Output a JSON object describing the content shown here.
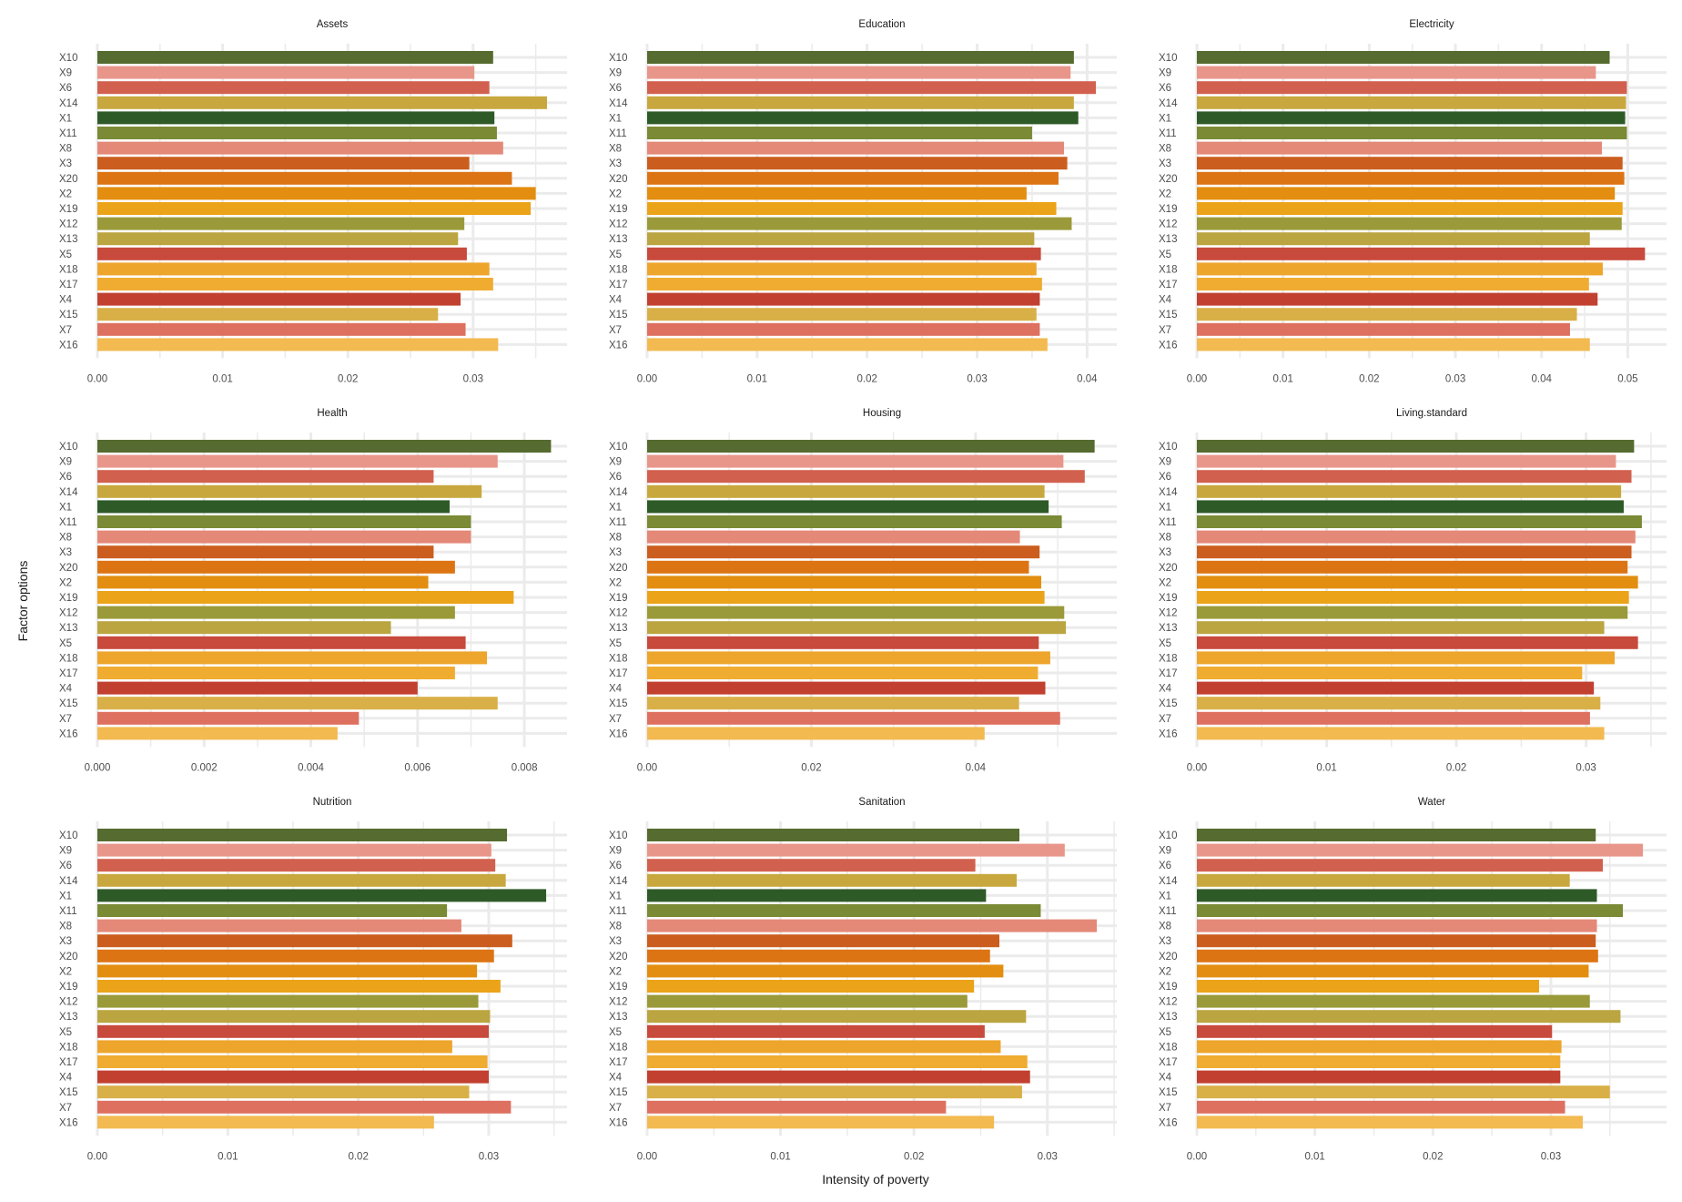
{
  "figure": {
    "y_axis_title": "Factor options",
    "x_axis_title": "Intensity of poverty"
  },
  "chart_data": [
    {
      "type": "bar",
      "orientation": "horizontal",
      "title": "Assets",
      "categories": [
        "X10",
        "X9",
        "X6",
        "X14",
        "X1",
        "X11",
        "X8",
        "X3",
        "X20",
        "X2",
        "X19",
        "X12",
        "X13",
        "X5",
        "X18",
        "X17",
        "X4",
        "X15",
        "X7",
        "X16"
      ],
      "values": [
        0.0316,
        0.0301,
        0.0313,
        0.0359,
        0.0317,
        0.0319,
        0.0324,
        0.0297,
        0.0331,
        0.035,
        0.0346,
        0.0293,
        0.0288,
        0.0295,
        0.0313,
        0.0316,
        0.029,
        0.0272,
        0.0294,
        0.032
      ],
      "ticks": [
        0.0,
        0.01,
        0.02,
        0.03
      ],
      "tick_labels": [
        "0.00",
        "0.01",
        "0.02",
        "0.03"
      ],
      "xlim": [
        0,
        0.0375
      ],
      "xlabel": "",
      "ylabel": "Factor options"
    },
    {
      "type": "bar",
      "orientation": "horizontal",
      "title": "Education",
      "categories": [
        "X10",
        "X9",
        "X6",
        "X14",
        "X1",
        "X11",
        "X8",
        "X3",
        "X20",
        "X2",
        "X19",
        "X12",
        "X13",
        "X5",
        "X18",
        "X17",
        "X4",
        "X15",
        "X7",
        "X16"
      ],
      "values": [
        0.0388,
        0.0385,
        0.0408,
        0.0388,
        0.0392,
        0.035,
        0.0379,
        0.0382,
        0.0374,
        0.0345,
        0.0372,
        0.0386,
        0.0352,
        0.0358,
        0.0354,
        0.0359,
        0.0357,
        0.0354,
        0.0357,
        0.0364
      ],
      "ticks": [
        0.0,
        0.01,
        0.02,
        0.03,
        0.04
      ],
      "tick_labels": [
        "0.00",
        "0.01",
        "0.02",
        "0.03",
        "0.04"
      ],
      "xlim": [
        0,
        0.0427
      ],
      "xlabel": "",
      "ylabel": ""
    },
    {
      "type": "bar",
      "orientation": "horizontal",
      "title": "Electricity",
      "categories": [
        "X10",
        "X9",
        "X6",
        "X14",
        "X1",
        "X11",
        "X8",
        "X3",
        "X20",
        "X2",
        "X19",
        "X12",
        "X13",
        "X5",
        "X18",
        "X17",
        "X4",
        "X15",
        "X7",
        "X16"
      ],
      "values": [
        0.0479,
        0.0463,
        0.0499,
        0.0498,
        0.0497,
        0.0499,
        0.047,
        0.0494,
        0.0496,
        0.0485,
        0.0494,
        0.0493,
        0.0456,
        0.052,
        0.0471,
        0.0455,
        0.0465,
        0.0441,
        0.0433,
        0.0456
      ],
      "ticks": [
        0.0,
        0.01,
        0.02,
        0.03,
        0.04,
        0.05
      ],
      "tick_labels": [
        "0.00",
        "0.01",
        "0.02",
        "0.03",
        "0.04",
        "0.05"
      ],
      "xlim": [
        0,
        0.0545
      ],
      "xlabel": "",
      "ylabel": ""
    },
    {
      "type": "bar",
      "orientation": "horizontal",
      "title": "Health",
      "categories": [
        "X10",
        "X9",
        "X6",
        "X14",
        "X1",
        "X11",
        "X8",
        "X3",
        "X20",
        "X2",
        "X19",
        "X12",
        "X13",
        "X5",
        "X18",
        "X17",
        "X4",
        "X15",
        "X7",
        "X16"
      ],
      "values": [
        0.0085,
        0.0075,
        0.0063,
        0.0072,
        0.0066,
        0.007,
        0.007,
        0.0063,
        0.0067,
        0.0062,
        0.0078,
        0.0067,
        0.0055,
        0.0069,
        0.0073,
        0.0067,
        0.006,
        0.0075,
        0.0049,
        0.0045
      ],
      "ticks": [
        0.0,
        0.002,
        0.004,
        0.006,
        0.008
      ],
      "tick_labels": [
        "0.000",
        "0.002",
        "0.004",
        "0.006",
        "0.008"
      ],
      "xlim": [
        0,
        0.0088
      ],
      "xlabel": "",
      "ylabel": "Factor options"
    },
    {
      "type": "bar",
      "orientation": "horizontal",
      "title": "Housing",
      "categories": [
        "X10",
        "X9",
        "X6",
        "X14",
        "X1",
        "X11",
        "X8",
        "X3",
        "X20",
        "X2",
        "X19",
        "X12",
        "X13",
        "X5",
        "X18",
        "X17",
        "X4",
        "X15",
        "X7",
        "X16"
      ],
      "values": [
        0.0545,
        0.0507,
        0.0533,
        0.0484,
        0.0489,
        0.0505,
        0.0454,
        0.0478,
        0.0465,
        0.048,
        0.0484,
        0.0508,
        0.051,
        0.0477,
        0.0491,
        0.0476,
        0.0485,
        0.0453,
        0.0503,
        0.0411
      ],
      "ticks": [
        0.0,
        0.02,
        0.04
      ],
      "tick_labels": [
        "0.00",
        "0.02",
        "0.04"
      ],
      "xlim": [
        0,
        0.0572
      ],
      "xlabel": "",
      "ylabel": ""
    },
    {
      "type": "bar",
      "orientation": "horizontal",
      "title": "Living.standard",
      "categories": [
        "X10",
        "X9",
        "X6",
        "X14",
        "X1",
        "X11",
        "X8",
        "X3",
        "X20",
        "X2",
        "X19",
        "X12",
        "X13",
        "X5",
        "X18",
        "X17",
        "X4",
        "X15",
        "X7",
        "X16"
      ],
      "values": [
        0.0337,
        0.0323,
        0.0335,
        0.0327,
        0.0329,
        0.0343,
        0.0338,
        0.0335,
        0.0332,
        0.034,
        0.0333,
        0.0332,
        0.0314,
        0.034,
        0.0322,
        0.0297,
        0.0306,
        0.0311,
        0.0303,
        0.0314
      ],
      "ticks": [
        0.0,
        0.01,
        0.02,
        0.03
      ],
      "tick_labels": [
        "0.00",
        "0.01",
        "0.02",
        "0.03"
      ],
      "xlim": [
        0,
        0.0362
      ],
      "xlabel": "",
      "ylabel": ""
    },
    {
      "type": "bar",
      "orientation": "horizontal",
      "title": "Nutrition",
      "categories": [
        "X10",
        "X9",
        "X6",
        "X14",
        "X1",
        "X11",
        "X8",
        "X3",
        "X20",
        "X2",
        "X19",
        "X12",
        "X13",
        "X5",
        "X18",
        "X17",
        "X4",
        "X15",
        "X7",
        "X16"
      ],
      "values": [
        0.0314,
        0.0302,
        0.0305,
        0.0313,
        0.0344,
        0.0268,
        0.0279,
        0.0318,
        0.0304,
        0.0291,
        0.0309,
        0.0292,
        0.0301,
        0.03,
        0.0272,
        0.0299,
        0.03,
        0.0285,
        0.0317,
        0.0258
      ],
      "ticks": [
        0.0,
        0.01,
        0.02,
        0.03
      ],
      "tick_labels": [
        "0.00",
        "0.01",
        "0.02",
        "0.03"
      ],
      "xlim": [
        0,
        0.036
      ],
      "xlabel": "",
      "ylabel": "Factor options"
    },
    {
      "type": "bar",
      "orientation": "horizontal",
      "title": "Sanitation",
      "categories": [
        "X10",
        "X9",
        "X6",
        "X14",
        "X1",
        "X11",
        "X8",
        "X3",
        "X20",
        "X2",
        "X19",
        "X12",
        "X13",
        "X5",
        "X18",
        "X17",
        "X4",
        "X15",
        "X7",
        "X16"
      ],
      "values": [
        0.0279,
        0.0313,
        0.0246,
        0.0277,
        0.0254,
        0.0295,
        0.0337,
        0.0264,
        0.0257,
        0.0267,
        0.0245,
        0.024,
        0.0284,
        0.0253,
        0.0265,
        0.0285,
        0.0287,
        0.0281,
        0.0224,
        0.026
      ],
      "ticks": [
        0.0,
        0.01,
        0.02,
        0.03
      ],
      "tick_labels": [
        "0.00",
        "0.01",
        "0.02",
        "0.03"
      ],
      "xlim": [
        0,
        0.0352
      ],
      "xlabel": "Intensity of poverty",
      "ylabel": ""
    },
    {
      "type": "bar",
      "orientation": "horizontal",
      "title": "Water",
      "categories": [
        "X10",
        "X9",
        "X6",
        "X14",
        "X1",
        "X11",
        "X8",
        "X3",
        "X20",
        "X2",
        "X19",
        "X12",
        "X13",
        "X5",
        "X18",
        "X17",
        "X4",
        "X15",
        "X7",
        "X16"
      ],
      "values": [
        0.0338,
        0.0378,
        0.0344,
        0.0316,
        0.0339,
        0.0361,
        0.0339,
        0.0338,
        0.034,
        0.0332,
        0.029,
        0.0333,
        0.0359,
        0.0301,
        0.0309,
        0.0308,
        0.0308,
        0.035,
        0.0312,
        0.0327
      ],
      "ticks": [
        0.0,
        0.01,
        0.02,
        0.03
      ],
      "tick_labels": [
        "0.00",
        "0.01",
        "0.02",
        "0.03"
      ],
      "xlim": [
        0,
        0.0398
      ],
      "xlabel": "",
      "ylabel": ""
    }
  ],
  "palette": {
    "X10": "#556B2F",
    "X9": "#E8968A",
    "X6": "#D2604F",
    "X14": "#C8A83E",
    "X1": "#2E5A28",
    "X11": "#7A8A35",
    "X8": "#E48878",
    "X3": "#CB5E1E",
    "X20": "#DD7414",
    "X2": "#E38E10",
    "X19": "#EBA319",
    "X12": "#9A9A3A",
    "X13": "#BAA540",
    "X5": "#C84A3C",
    "X18": "#EDA52C",
    "X17": "#F0AC30",
    "X4": "#C24030",
    "X15": "#D9B048",
    "X7": "#DE7060",
    "X16": "#F2BA50"
  },
  "style": {
    "gridline_color": "#EBEBEB",
    "text_color": "#4D4D4D",
    "title_color": "#1A1A1A"
  }
}
